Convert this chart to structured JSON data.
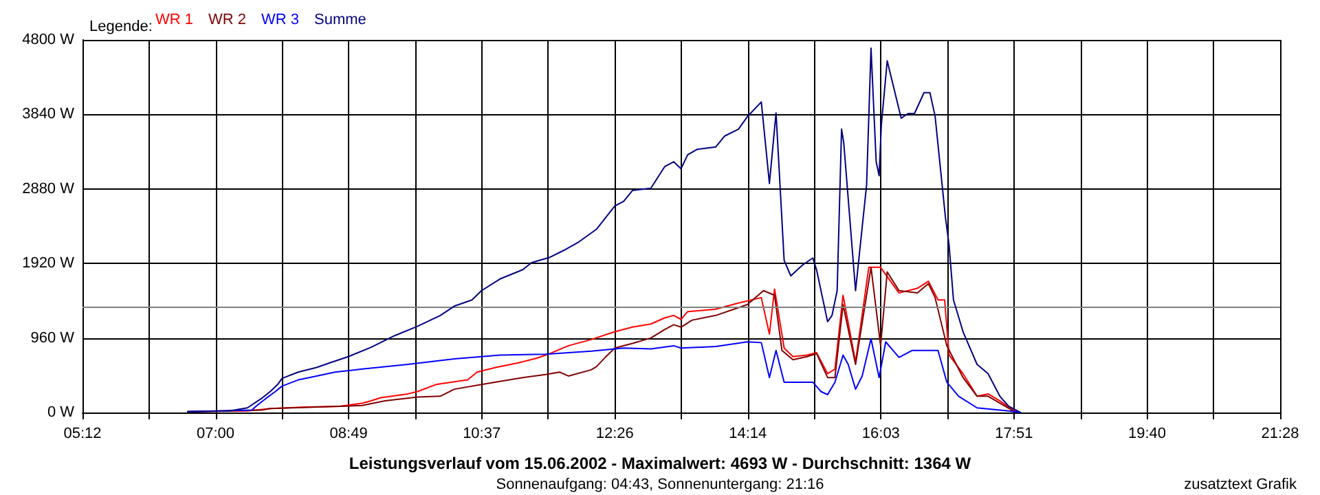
{
  "chart_data": {
    "type": "line",
    "title": "Leistungsverlauf vom 15.06.2002 - Maximalwert: 4693 W - Durchschnitt: 1364 W",
    "subtitle": "Sonnenaufgang: 04:43, Sonnenuntergang: 21:16",
    "legend_title": "Legende:",
    "annotations": [
      "zusatztext Grafik"
    ],
    "xlim": [
      5.2,
      21.4667
    ],
    "xticks": [
      {
        "value": 5.2,
        "label": "05:12"
      },
      {
        "value": 6.1037,
        "label": null
      },
      {
        "value": 7.0074,
        "label": "07:00"
      },
      {
        "value": 7.9111,
        "label": null
      },
      {
        "value": 8.8148,
        "label": "08:49"
      },
      {
        "value": 9.7185,
        "label": null
      },
      {
        "value": 10.6222,
        "label": "10:37"
      },
      {
        "value": 11.5259,
        "label": null
      },
      {
        "value": 12.4296,
        "label": "12:26"
      },
      {
        "value": 13.3333,
        "label": null
      },
      {
        "value": 14.237,
        "label": "14:14"
      },
      {
        "value": 15.1407,
        "label": null
      },
      {
        "value": 16.0444,
        "label": "16:03"
      },
      {
        "value": 16.9481,
        "label": null
      },
      {
        "value": 17.8519,
        "label": "17:51"
      },
      {
        "value": 18.7556,
        "label": null
      },
      {
        "value": 19.6593,
        "label": "19:40"
      },
      {
        "value": 20.563,
        "label": null
      },
      {
        "value": 21.4667,
        "label": "21:28"
      }
    ],
    "ylim": [
      0,
      4800
    ],
    "yticks": [
      {
        "value": 0,
        "label": "0 W"
      },
      {
        "value": 960,
        "label": "960 W"
      },
      {
        "value": 1920,
        "label": "1920 W"
      },
      {
        "value": 2880,
        "label": "2880 W"
      },
      {
        "value": 3840,
        "label": "3840 W"
      },
      {
        "value": 4800,
        "label": "4800 W"
      }
    ],
    "grid": true,
    "legend": "top left",
    "marker": "none",
    "line_style": "solid",
    "ref_lines": [
      {
        "axis": "y",
        "value": 1364,
        "color": "#808080"
      }
    ],
    "series": [
      {
        "name": "WR 1",
        "color": "#ff0000",
        "x": [
          6.63,
          7.44,
          7.75,
          8.25,
          8.69,
          9.0,
          9.12,
          9.25,
          9.62,
          9.75,
          10.0,
          10.43,
          10.56,
          10.81,
          11.12,
          11.37,
          11.55,
          11.8,
          12.11,
          12.43,
          12.67,
          12.92,
          13.11,
          13.23,
          13.33,
          13.42,
          13.8,
          14.11,
          14.42,
          14.53,
          14.6,
          14.73,
          14.85,
          15.04,
          15.17,
          15.32,
          15.42,
          15.53,
          15.7,
          15.88,
          16.04,
          16.13,
          16.29,
          16.54,
          16.69,
          16.82,
          16.91,
          16.97,
          17.16,
          17.35,
          17.5,
          17.66,
          17.84,
          17.94
        ],
        "values": [
          10,
          20,
          50,
          70,
          80,
          120,
          150,
          190,
          240,
          270,
          360,
          420,
          520,
          580,
          640,
          700,
          760,
          860,
          940,
          1040,
          1100,
          1140,
          1220,
          1250,
          1200,
          1300,
          1330,
          1410,
          1480,
          1010,
          1590,
          830,
          720,
          740,
          770,
          500,
          560,
          1510,
          650,
          1870,
          1870,
          1750,
          1540,
          1600,
          1690,
          1450,
          1450,
          740,
          500,
          210,
          240,
          150,
          30,
          0
        ]
      },
      {
        "name": "WR 2",
        "color": "#800000",
        "x": [
          6.63,
          7.63,
          7.75,
          9.0,
          9.31,
          9.75,
          10.06,
          10.25,
          10.62,
          10.87,
          11.18,
          11.49,
          11.68,
          11.8,
          12.11,
          12.18,
          12.3,
          12.43,
          12.67,
          12.92,
          13.11,
          13.23,
          13.33,
          13.48,
          13.8,
          14.11,
          14.23,
          14.45,
          14.6,
          14.7,
          14.85,
          15.04,
          15.17,
          15.32,
          15.42,
          15.53,
          15.7,
          15.91,
          16.04,
          16.13,
          16.29,
          16.54,
          16.69,
          16.78,
          16.94,
          17.16,
          17.35,
          17.5,
          17.66,
          17.84,
          17.94
        ],
        "values": [
          10,
          30,
          50,
          90,
          150,
          200,
          210,
          300,
          360,
          400,
          450,
          490,
          520,
          470,
          550,
          590,
          710,
          830,
          890,
          960,
          1070,
          1130,
          1100,
          1190,
          1250,
          1350,
          1390,
          1570,
          1510,
          800,
          680,
          720,
          760,
          450,
          450,
          1390,
          620,
          1870,
          860,
          1810,
          1570,
          1540,
          1660,
          1480,
          860,
          450,
          210,
          210,
          120,
          20,
          0
        ]
      },
      {
        "name": "WR 3",
        "color": "#0000ff",
        "x": [
          6.63,
          7.5,
          7.57,
          7.69,
          7.82,
          7.91,
          8.13,
          8.38,
          8.63,
          9.0,
          9.62,
          10.25,
          10.87,
          11.49,
          12.11,
          12.55,
          12.92,
          13.23,
          13.33,
          13.8,
          14.23,
          14.42,
          14.53,
          14.62,
          14.73,
          15.12,
          15.23,
          15.32,
          15.42,
          15.53,
          15.6,
          15.7,
          15.79,
          15.91,
          16.02,
          16.11,
          16.29,
          16.47,
          16.82,
          16.94,
          17.1,
          17.35,
          17.78,
          17.94
        ],
        "values": [
          10,
          30,
          90,
          180,
          270,
          340,
          420,
          470,
          520,
          560,
          620,
          690,
          740,
          750,
          790,
          830,
          820,
          860,
          830,
          850,
          910,
          900,
          450,
          800,
          390,
          390,
          270,
          230,
          390,
          740,
          620,
          300,
          470,
          950,
          450,
          910,
          710,
          800,
          800,
          390,
          210,
          60,
          20,
          0
        ]
      },
      {
        "name": "Summe",
        "color": "#000080",
        "x": [
          6.63,
          7.19,
          7.44,
          7.63,
          7.75,
          7.85,
          7.91,
          8.13,
          8.38,
          8.56,
          8.81,
          9.12,
          9.44,
          9.75,
          10.06,
          10.25,
          10.49,
          10.62,
          10.87,
          11.18,
          11.3,
          11.55,
          11.74,
          11.93,
          12.18,
          12.43,
          12.55,
          12.67,
          12.92,
          13.11,
          13.23,
          13.33,
          13.42,
          13.55,
          13.8,
          13.92,
          14.11,
          14.23,
          14.42,
          14.53,
          14.62,
          14.73,
          14.82,
          14.98,
          15.12,
          15.17,
          15.32,
          15.38,
          15.45,
          15.51,
          15.54,
          15.7,
          15.85,
          15.91,
          15.98,
          16.02,
          16.05,
          16.13,
          16.32,
          16.41,
          16.5,
          16.63,
          16.71,
          16.78,
          16.92,
          16.97,
          17.03,
          17.16,
          17.35,
          17.5,
          17.66,
          17.78,
          17.94
        ],
        "values": [
          10,
          20,
          60,
          180,
          270,
          360,
          440,
          520,
          580,
          640,
          720,
          840,
          990,
          1110,
          1250,
          1370,
          1450,
          1570,
          1720,
          1840,
          1930,
          2000,
          2090,
          2190,
          2360,
          2660,
          2720,
          2860,
          2890,
          3170,
          3230,
          3140,
          3320,
          3390,
          3420,
          3560,
          3650,
          3810,
          4000,
          2950,
          3860,
          1960,
          1760,
          1900,
          1990,
          1840,
          1170,
          1250,
          1570,
          3650,
          3470,
          1570,
          2930,
          4693,
          3230,
          3050,
          3700,
          4530,
          3790,
          3850,
          3850,
          4120,
          4120,
          3820,
          2520,
          2160,
          1450,
          1040,
          620,
          500,
          210,
          80,
          0
        ]
      }
    ]
  }
}
